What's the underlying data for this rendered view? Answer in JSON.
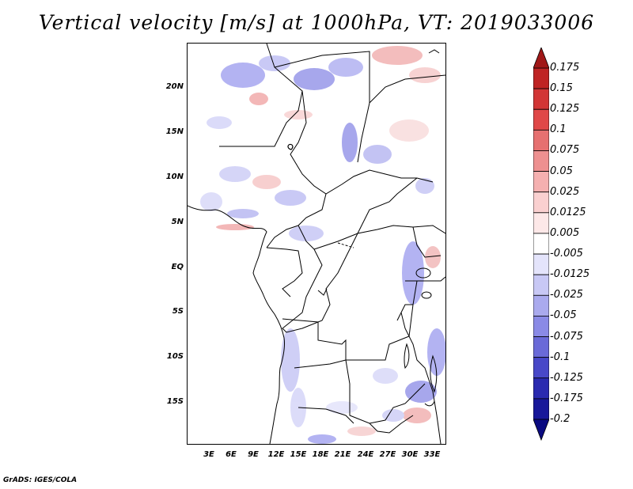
{
  "title": "Vertical velocity [m/s] at 1000hPa, VT: 2019033006",
  "footer": "GrADS: IGES/COLA",
  "map": {
    "lat_labels": [
      "20N",
      "15N",
      "10N",
      "5N",
      "EQ",
      "5S",
      "10S",
      "15S"
    ],
    "lon_labels": [
      "3E",
      "6E",
      "9E",
      "12E",
      "15E",
      "18E",
      "21E",
      "24E",
      "27E",
      "30E",
      "33E"
    ],
    "lat_range": [
      -20,
      25
    ],
    "lon_range": [
      0,
      35
    ],
    "colors": {
      "upward_motion": "#4f4fe0",
      "downward_motion": "#e05050",
      "coastline": "#000000"
    }
  },
  "colorbar": {
    "labels": [
      "0.175",
      "0.15",
      "0.125",
      "0.1",
      "0.075",
      "0.05",
      "0.025",
      "0.0125",
      "0.005",
      "-0.005",
      "-0.0125",
      "-0.025",
      "-0.05",
      "-0.075",
      "-0.1",
      "-0.125",
      "-0.175",
      "-0.2"
    ],
    "colors": [
      "#a01818",
      "#bf2424",
      "#d23636",
      "#e04848",
      "#e67070",
      "#ee9090",
      "#f5b0b0",
      "#fad0d0",
      "#fde8e8",
      "#ffffff",
      "#e4e4fb",
      "#c8c8f5",
      "#aaaaee",
      "#8a8ae6",
      "#6a6ad8",
      "#4848c8",
      "#2a2ab0",
      "#18189a",
      "#0a0a80"
    ]
  }
}
